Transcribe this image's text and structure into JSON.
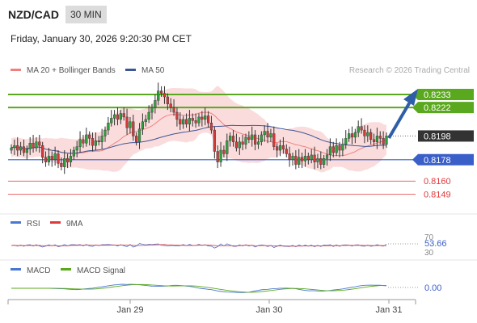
{
  "header": {
    "pair": "NZD/CAD",
    "timeframe": "30 MIN",
    "datetime": "Friday, January 30, 2026 9:20:30 PM CET"
  },
  "legend": {
    "ma20": "MA 20 + Bollinger Bands",
    "ma50": "MA 50",
    "credit": "Research © 2026 Trading Central"
  },
  "colors": {
    "green": "#5aa81e",
    "blue": "#3a5fc8",
    "red": "#e0393b",
    "arrow": "#2f5ea8",
    "bbfill": "#fbdcdc",
    "ma50": "#3b5596",
    "ma20": "#f08080"
  },
  "chart_data": {
    "type": "candlestick",
    "ylim": [
      0.8137,
      0.8248
    ],
    "xticks": [
      "Jan 29",
      "Jan 30",
      "Jan 31"
    ],
    "levels": [
      {
        "value": "0.8233",
        "kind": "resistance",
        "color": "#5aa81e"
      },
      {
        "value": "0.8222",
        "kind": "resistance",
        "color": "#5aa81e"
      },
      {
        "value": "0.8198",
        "kind": "current",
        "color": "#333333"
      },
      {
        "value": "0.8178",
        "kind": "support",
        "color": "#3a5fc8"
      },
      {
        "value": "0.8160",
        "kind": "support",
        "color": "#e0393b"
      },
      {
        "value": "0.8149",
        "kind": "support",
        "color": "#e0393b"
      }
    ],
    "close": [
      0.8188,
      0.819,
      0.8186,
      0.8189,
      0.8184,
      0.8187,
      0.8192,
      0.8188,
      0.8193,
      0.819,
      0.818,
      0.8176,
      0.8181,
      0.8178,
      0.8183,
      0.8175,
      0.8172,
      0.8179,
      0.8176,
      0.8181,
      0.8186,
      0.8189,
      0.8195,
      0.8192,
      0.8199,
      0.8196,
      0.819,
      0.8194,
      0.8193,
      0.8198,
      0.8203,
      0.8209,
      0.8213,
      0.8216,
      0.8212,
      0.8217,
      0.8214,
      0.8205,
      0.821,
      0.8198,
      0.8193,
      0.8204,
      0.821,
      0.8212,
      0.8218,
      0.8222,
      0.8228,
      0.8236,
      0.8234,
      0.8231,
      0.8225,
      0.8222,
      0.8218,
      0.8212,
      0.8208,
      0.8212,
      0.8208,
      0.8213,
      0.8211,
      0.8209,
      0.8214,
      0.8212,
      0.8215,
      0.8209,
      0.8203,
      0.8185,
      0.8176,
      0.8186,
      0.8183,
      0.8194,
      0.8198,
      0.8193,
      0.8188,
      0.8193,
      0.8191,
      0.8197,
      0.8195,
      0.8199,
      0.8191,
      0.8193,
      0.8199,
      0.8202,
      0.8197,
      0.82,
      0.8189,
      0.8186,
      0.819,
      0.8187,
      0.8183,
      0.8178,
      0.8181,
      0.8174,
      0.818,
      0.8177,
      0.8181,
      0.8178,
      0.8182,
      0.8176,
      0.8179,
      0.8174,
      0.8179,
      0.8182,
      0.8189,
      0.8184,
      0.819,
      0.8186,
      0.8191,
      0.8196,
      0.82,
      0.8197,
      0.8201,
      0.8206,
      0.8203,
      0.8198,
      0.8201,
      0.8195,
      0.8193,
      0.8198,
      0.8196,
      0.8191,
      0.8198
    ],
    "rsi": {
      "ticks": [
        "70",
        "30"
      ],
      "current": "53.66",
      "legend": [
        "RSI",
        "9MA"
      ]
    },
    "macd": {
      "current": "0.00",
      "legend": [
        "MACD",
        "MACD Signal"
      ]
    }
  }
}
